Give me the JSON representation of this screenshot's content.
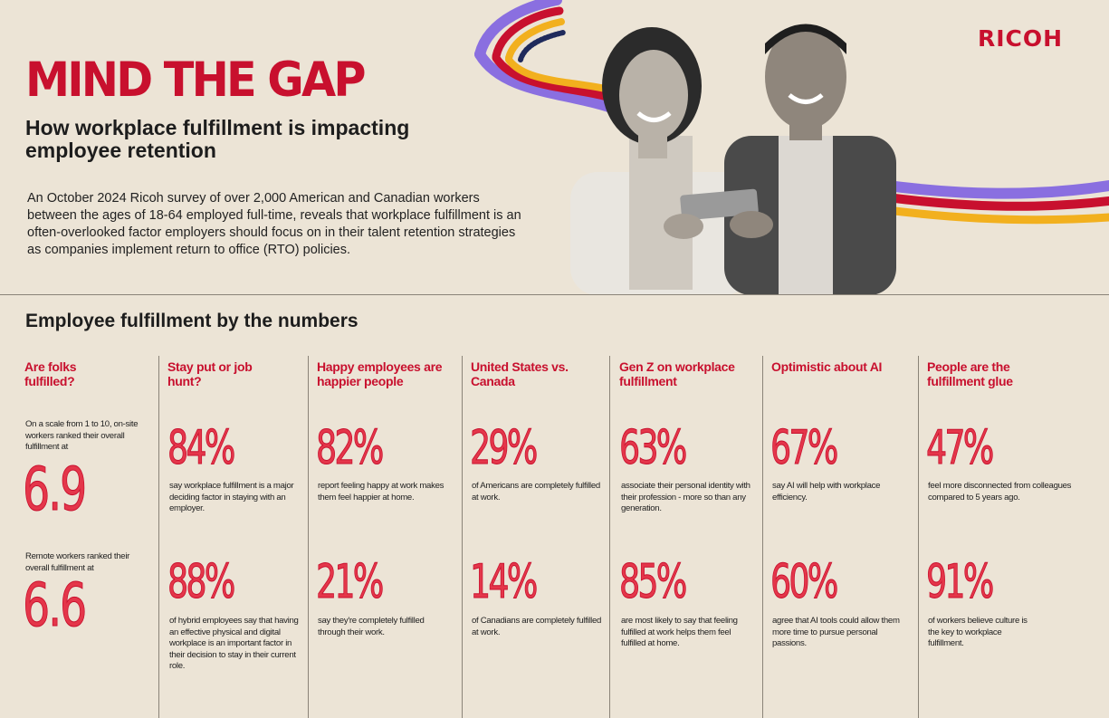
{
  "brand": {
    "logo": "RICOH"
  },
  "header": {
    "title": "MIND THE GAP",
    "subtitle": "How workplace fulfillment is impacting employee retention",
    "intro": "An October 2024 Ricoh survey of over 2,000 American and Canadian workers between the ages of 18-64 employed full-time, reveals that workplace fulfillment is an often-overlooked factor employers should focus on in their talent retention strategies as companies implement return to office (RTO) policies."
  },
  "section_title": "Employee fulfillment by the numbers",
  "columns": [
    {
      "heading": "Are folks fulfilled?",
      "intro": "On a scale from 1 to 10, on-site workers ranked their overall fulfillment at",
      "stat1": "6.9",
      "mid": "Remote workers ranked their overall fulfillment at",
      "stat2": "6.6"
    },
    {
      "heading": "Stay put or job hunt?",
      "stat1": "84%",
      "desc1": "say workplace fulfillment is a major deciding factor in staying with an employer.",
      "stat2": "88%",
      "desc2": "of hybrid employees say that having an effective physical and digital workplace is an important factor in their decision to stay in their current role."
    },
    {
      "heading": "Happy employees are happier people",
      "stat1": "82%",
      "desc1": "report feeling happy at work makes them feel happier at home.",
      "stat2": "21%",
      "desc2": "say they're completely fulfilled through their work."
    },
    {
      "heading": "United States vs. Canada",
      "stat1": "29%",
      "desc1": "of Americans are completely fulfilled at work.",
      "stat2": "14%",
      "desc2": "of Canadians are completely fulfilled at work."
    },
    {
      "heading": "Gen Z on workplace fulfillment",
      "stat1": "63%",
      "desc1": "associate their personal identity with their profession - more so than any generation.",
      "stat2": "85%",
      "desc2": "are most likely to say that feeling fulfilled at work helps them feel fulfilled at home."
    },
    {
      "heading": "Optimistic about AI",
      "stat1": "67%",
      "desc1": "say AI will help with workplace efficiency.",
      "stat2": "60%",
      "desc2": "agree that AI tools could allow them more time to pursue personal passions."
    },
    {
      "heading": "People are the fulfillment glue",
      "stat1": "47%",
      "desc1": "feel more disconnected from colleagues compared to 5 years ago.",
      "stat2": "91%",
      "desc2": "of workers believe culture is the key to workplace fulfillment."
    }
  ],
  "colors": {
    "brand_red": "#c8102e",
    "background": "#ece4d6",
    "ribbon_purple": "#8a6fe0",
    "ribbon_red": "#c8102e",
    "ribbon_yellow": "#f2b01e",
    "ribbon_navy": "#1f2a5c"
  }
}
